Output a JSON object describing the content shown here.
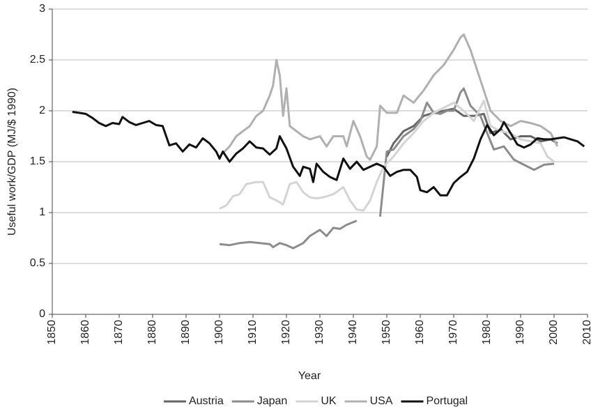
{
  "chart_data": {
    "type": "line",
    "xlabel": "Year",
    "ylabel": "Useful work/GDP (MJ/$ 1990)",
    "xlim": [
      1850,
      2010
    ],
    "xticks": [
      1850,
      1860,
      1870,
      1880,
      1890,
      1900,
      1910,
      1920,
      1930,
      1940,
      1950,
      1960,
      1970,
      1980,
      1990,
      2000,
      2010
    ],
    "ylim": [
      0,
      3
    ],
    "yticks": [
      0,
      0.5,
      1,
      1.5,
      2,
      2.5,
      3
    ],
    "grid": true,
    "legend": "bottom",
    "series": [
      {
        "name": "Austria",
        "color": "#666666",
        "x": [
          1950,
          1952,
          1955,
          1958,
          1961,
          1964,
          1967,
          1970,
          1973,
          1976,
          1979,
          1981,
          1984,
          1987,
          1990,
          1993,
          1996,
          1999,
          2001
        ],
        "values": [
          1.55,
          1.68,
          1.8,
          1.85,
          1.95,
          1.98,
          2.0,
          2.02,
          1.95,
          1.95,
          1.97,
          1.78,
          1.82,
          1.72,
          1.75,
          1.75,
          1.7,
          1.72,
          1.68
        ]
      },
      {
        "name": "Japan",
        "color": "#8c8c8c",
        "x": [
          1900,
          1903,
          1906,
          1909,
          1912,
          1915,
          1916,
          1918,
          1920,
          1922,
          1925,
          1927,
          1930,
          1932,
          1934,
          1936,
          1938,
          1941,
          1944,
          1948,
          1950,
          1952,
          1955,
          1958,
          1960,
          1962,
          1964,
          1966,
          1968,
          1970,
          1972,
          1973,
          1975,
          1978,
          1980,
          1982,
          1985,
          1988,
          1991,
          1994,
          1997,
          2000
        ],
        "values": [
          0.69,
          0.68,
          0.7,
          0.71,
          0.7,
          0.69,
          0.66,
          0.7,
          0.68,
          0.65,
          0.7,
          0.77,
          0.83,
          0.77,
          0.85,
          0.84,
          0.88,
          0.92,
          null,
          0.96,
          1.6,
          1.62,
          1.75,
          1.82,
          1.9,
          2.08,
          1.98,
          1.97,
          2.0,
          2.0,
          2.18,
          2.22,
          2.05,
          1.95,
          1.78,
          1.62,
          1.65,
          1.52,
          1.47,
          1.42,
          1.47,
          1.48
        ]
      },
      {
        "name": "UK",
        "color": "#d4d4d4",
        "x": [
          1900,
          1902,
          1904,
          1906,
          1908,
          1911,
          1913,
          1915,
          1917,
          1919,
          1921,
          1923,
          1925,
          1927,
          1929,
          1931,
          1934,
          1937,
          1939,
          1941,
          1943,
          1945,
          1947,
          1949,
          1952,
          1955,
          1958,
          1961,
          1964,
          1967,
          1970,
          1973,
          1976,
          1979,
          1981,
          1984,
          1987,
          1990,
          1993,
          1996,
          1998,
          2000
        ],
        "values": [
          1.04,
          1.07,
          1.16,
          1.18,
          1.28,
          1.3,
          1.3,
          1.15,
          1.12,
          1.08,
          1.28,
          1.3,
          1.2,
          1.15,
          1.14,
          1.15,
          1.18,
          1.25,
          1.12,
          1.03,
          1.02,
          1.12,
          1.3,
          1.45,
          1.55,
          1.68,
          1.78,
          1.9,
          1.98,
          2.03,
          2.08,
          2.0,
          1.9,
          2.1,
          1.85,
          1.8,
          1.78,
          1.72,
          1.7,
          1.68,
          1.55,
          1.5
        ]
      },
      {
        "name": "USA",
        "color": "#b0b0b0",
        "x": [
          1900,
          1903,
          1905,
          1907,
          1909,
          1911,
          1913,
          1915,
          1916,
          1917,
          1918,
          1919,
          1920,
          1921,
          1923,
          1925,
          1927,
          1930,
          1932,
          1934,
          1937,
          1938,
          1940,
          1942,
          1944,
          1945,
          1947,
          1948,
          1950,
          1953,
          1955,
          1958,
          1961,
          1964,
          1967,
          1970,
          1972,
          1973,
          1975,
          1977,
          1979,
          1981,
          1984,
          1987,
          1990,
          1993,
          1996,
          1999,
          2001
        ],
        "values": [
          1.55,
          1.65,
          1.75,
          1.8,
          1.85,
          1.95,
          2.0,
          2.15,
          2.25,
          2.5,
          2.35,
          1.95,
          2.22,
          1.85,
          1.8,
          1.75,
          1.72,
          1.75,
          1.65,
          1.75,
          1.75,
          1.65,
          1.9,
          1.75,
          1.55,
          1.52,
          1.65,
          2.05,
          1.98,
          1.98,
          2.15,
          2.08,
          2.2,
          2.35,
          2.45,
          2.6,
          2.72,
          2.75,
          2.6,
          2.4,
          2.2,
          2.0,
          1.9,
          1.85,
          1.9,
          1.88,
          1.85,
          1.78,
          1.65
        ]
      },
      {
        "name": "Portugal",
        "color": "#111111",
        "x": [
          1856,
          1858,
          1860,
          1862,
          1864,
          1866,
          1868,
          1870,
          1871,
          1873,
          1875,
          1877,
          1879,
          1881,
          1883,
          1885,
          1887,
          1889,
          1891,
          1893,
          1895,
          1897,
          1899,
          1900,
          1901,
          1903,
          1905,
          1907,
          1909,
          1911,
          1913,
          1915,
          1917,
          1918,
          1920,
          1922,
          1924,
          1925,
          1927,
          1928,
          1929,
          1931,
          1933,
          1935,
          1937,
          1939,
          1941,
          1943,
          1945,
          1947,
          1949,
          1951,
          1953,
          1955,
          1957,
          1959,
          1960,
          1962,
          1964,
          1966,
          1968,
          1970,
          1972,
          1974,
          1976,
          1978,
          1980,
          1982,
          1984,
          1985,
          1987,
          1989,
          1991,
          1993,
          1995,
          1997,
          1999,
          2001,
          2003,
          2005,
          2007,
          2009
        ],
        "values": [
          1.99,
          1.98,
          1.97,
          1.93,
          1.88,
          1.85,
          1.88,
          1.87,
          1.94,
          1.89,
          1.86,
          1.88,
          1.9,
          1.86,
          1.85,
          1.66,
          1.68,
          1.6,
          1.67,
          1.64,
          1.73,
          1.68,
          1.6,
          1.53,
          1.6,
          1.5,
          1.58,
          1.63,
          1.7,
          1.64,
          1.63,
          1.57,
          1.63,
          1.75,
          1.63,
          1.45,
          1.36,
          1.45,
          1.43,
          1.3,
          1.48,
          1.4,
          1.35,
          1.32,
          1.53,
          1.43,
          1.5,
          1.42,
          1.45,
          1.48,
          1.45,
          1.36,
          1.4,
          1.42,
          1.42,
          1.35,
          1.22,
          1.2,
          1.25,
          1.17,
          1.17,
          1.29,
          1.35,
          1.4,
          1.53,
          1.72,
          1.86,
          1.76,
          1.82,
          1.89,
          1.78,
          1.67,
          1.64,
          1.67,
          1.73,
          1.72,
          1.72,
          1.73,
          1.74,
          1.72,
          1.7,
          1.65
        ]
      }
    ]
  }
}
